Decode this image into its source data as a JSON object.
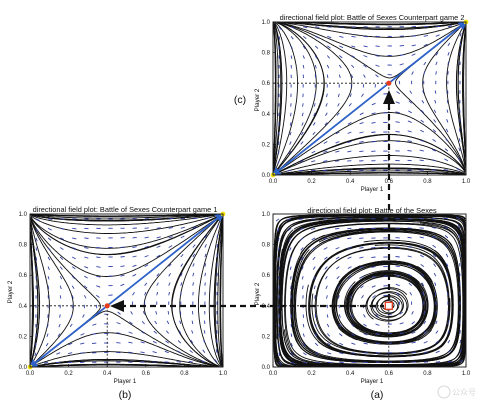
{
  "chart_data": [
    {
      "id": "c",
      "type": "vector_field",
      "title": "directional field plot: Battle of Sexes Counterpart game 2",
      "xlabel": "Player 1",
      "ylabel": "Player 2",
      "xlim": [
        0,
        1
      ],
      "ylim": [
        0,
        1
      ],
      "xticks": [
        "0.0",
        "0.2",
        "0.4",
        "0.6",
        "0.8",
        "1.0"
      ],
      "yticks": [
        "0.0",
        "0.2",
        "0.4",
        "0.6",
        "0.8",
        "1.0"
      ],
      "grid": false,
      "panel_label": "(c)",
      "field": {
        "a1": 1,
        "b1": 0.6,
        "a2": 1,
        "b2": 0.6
      },
      "equilibrium": [
        0.6,
        0.6
      ],
      "attractors": [
        [
          0,
          0
        ],
        [
          1,
          1
        ]
      ],
      "diagonal_arrows": [
        [
          0.6,
          0.6,
          0,
          0
        ],
        [
          0.6,
          0.6,
          1,
          1
        ]
      ]
    },
    {
      "id": "b",
      "type": "vector_field",
      "title": "directional field plot: Battle of Sexes Counterpart game 1",
      "xlabel": "Player 1",
      "ylabel": "Player 2",
      "xlim": [
        0,
        1
      ],
      "ylim": [
        0,
        1
      ],
      "xticks": [
        "0.0",
        "0.2",
        "0.4",
        "0.6",
        "0.8",
        "1.0"
      ],
      "yticks": [
        "0.0",
        "0.2",
        "0.4",
        "0.6",
        "0.8",
        "1.0"
      ],
      "grid": false,
      "panel_label": "(b)",
      "field": {
        "a1": 1,
        "b1": 0.4,
        "a2": 1,
        "b2": 0.4
      },
      "equilibrium": [
        0.4,
        0.4
      ],
      "attractors": [
        [
          0,
          0
        ],
        [
          1,
          1
        ]
      ],
      "diagonal_arrows": [
        [
          0.4,
          0.4,
          0,
          0
        ],
        [
          0.4,
          0.4,
          1,
          1
        ]
      ]
    },
    {
      "id": "a",
      "type": "vector_field",
      "title": "directional field plot: Battle of the Sexes",
      "xlabel": "Player 1",
      "ylabel": "Player 2",
      "xlim": [
        0,
        1
      ],
      "ylim": [
        0,
        1
      ],
      "xticks": [
        "0.0",
        "0.2",
        "0.4",
        "0.6",
        "0.8",
        "1.0"
      ],
      "yticks": [
        "0.0",
        "0.2",
        "0.4",
        "0.6",
        "0.8",
        "1.0"
      ],
      "grid": false,
      "panel_label": "(a)",
      "field": {
        "a1": -1,
        "b1": 0.4,
        "a2": 1,
        "b2": 0.6
      },
      "equilibrium": [
        0.6,
        0.4
      ],
      "attractors": [],
      "diagonal_arrows": []
    }
  ],
  "colors": {
    "streamline": "#111111",
    "quiver": "#3140a8",
    "diagonal": "#2f62c9",
    "equilibrium": "#e63b1d",
    "attractor": "#f4e20c",
    "guide": "#111111"
  },
  "watermark": "公众号"
}
